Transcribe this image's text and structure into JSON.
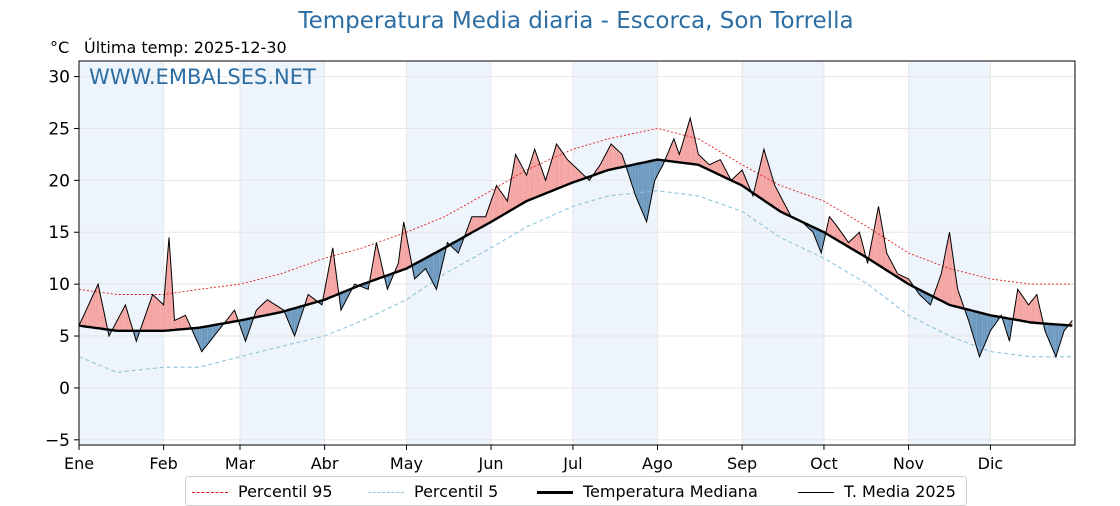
{
  "header": {
    "title": "Temperatura Media diaria - Escorca, Son Torrella",
    "unit": "°C",
    "last_temp": "Última temp: 2025-12-30",
    "watermark": "WWW.EMBALSES.NET"
  },
  "legend": {
    "p95": "Percentil 95",
    "p5": "Percentil 5",
    "median": "Temperatura Mediana",
    "year": "T. Media 2025"
  },
  "colors": {
    "title": "#2c6ea3",
    "p95": "#e31a1c",
    "p5": "#8fc4dc",
    "median": "#000000",
    "year": "#000000",
    "above_fill": "#f4a5a3",
    "below_fill": "#6f9ac0",
    "month_band": "#eef4fb"
  },
  "chart_data": {
    "type": "line",
    "ylim": [
      -5.5,
      31.5
    ],
    "yticks": [
      -5,
      0,
      5,
      10,
      15,
      20,
      25,
      30
    ],
    "grid": true,
    "legend_position": "bottom-center",
    "months": [
      "Ene",
      "Feb",
      "Mar",
      "Abr",
      "May",
      "Jun",
      "Jul",
      "Ago",
      "Sep",
      "Oct",
      "Nov",
      "Dic"
    ],
    "month_start_days": [
      1,
      32,
      60,
      91,
      121,
      152,
      182,
      213,
      244,
      274,
      305,
      335
    ],
    "x_day_range": [
      1,
      365
    ],
    "series_keypoints_day_value": {
      "median": [
        [
          1,
          6.0
        ],
        [
          15,
          5.5
        ],
        [
          32,
          5.5
        ],
        [
          45,
          5.8
        ],
        [
          60,
          6.5
        ],
        [
          75,
          7.3
        ],
        [
          91,
          8.5
        ],
        [
          105,
          10.0
        ],
        [
          121,
          11.5
        ],
        [
          135,
          13.5
        ],
        [
          152,
          16.0
        ],
        [
          165,
          18.0
        ],
        [
          182,
          19.8
        ],
        [
          195,
          21.0
        ],
        [
          213,
          22.0
        ],
        [
          228,
          21.5
        ],
        [
          244,
          19.5
        ],
        [
          258,
          17.0
        ],
        [
          274,
          15.0
        ],
        [
          290,
          12.5
        ],
        [
          305,
          10.0
        ],
        [
          320,
          8.0
        ],
        [
          335,
          7.0
        ],
        [
          350,
          6.3
        ],
        [
          365,
          6.0
        ]
      ],
      "p95": [
        [
          1,
          9.5
        ],
        [
          15,
          9.0
        ],
        [
          32,
          9.0
        ],
        [
          45,
          9.5
        ],
        [
          60,
          10.0
        ],
        [
          75,
          11.0
        ],
        [
          91,
          12.5
        ],
        [
          105,
          13.5
        ],
        [
          121,
          15.0
        ],
        [
          135,
          16.5
        ],
        [
          152,
          19.0
        ],
        [
          165,
          21.0
        ],
        [
          182,
          23.0
        ],
        [
          195,
          24.0
        ],
        [
          213,
          25.0
        ],
        [
          228,
          24.0
        ],
        [
          244,
          21.5
        ],
        [
          258,
          19.5
        ],
        [
          274,
          18.0
        ],
        [
          290,
          15.5
        ],
        [
          305,
          13.0
        ],
        [
          320,
          11.5
        ],
        [
          335,
          10.5
        ],
        [
          350,
          10.0
        ],
        [
          365,
          10.0
        ]
      ],
      "p5": [
        [
          1,
          3.0
        ],
        [
          15,
          1.5
        ],
        [
          32,
          2.0
        ],
        [
          45,
          2.0
        ],
        [
          60,
          3.0
        ],
        [
          75,
          4.0
        ],
        [
          91,
          5.0
        ],
        [
          105,
          6.5
        ],
        [
          121,
          8.5
        ],
        [
          135,
          11.0
        ],
        [
          152,
          13.5
        ],
        [
          165,
          15.5
        ],
        [
          182,
          17.5
        ],
        [
          195,
          18.5
        ],
        [
          213,
          19.0
        ],
        [
          228,
          18.5
        ],
        [
          244,
          17.0
        ],
        [
          258,
          14.5
        ],
        [
          274,
          12.5
        ],
        [
          290,
          10.0
        ],
        [
          305,
          7.0
        ],
        [
          320,
          5.0
        ],
        [
          335,
          3.5
        ],
        [
          350,
          3.0
        ],
        [
          365,
          3.0
        ]
      ],
      "year_2025": [
        [
          1,
          6.0
        ],
        [
          8,
          10.0
        ],
        [
          12,
          5.0
        ],
        [
          18,
          8.0
        ],
        [
          22,
          4.5
        ],
        [
          28,
          9.0
        ],
        [
          32,
          8.0
        ],
        [
          34,
          14.5
        ],
        [
          36,
          6.5
        ],
        [
          40,
          7.0
        ],
        [
          46,
          3.5
        ],
        [
          52,
          5.5
        ],
        [
          58,
          7.5
        ],
        [
          62,
          4.5
        ],
        [
          66,
          7.5
        ],
        [
          70,
          8.5
        ],
        [
          76,
          7.5
        ],
        [
          80,
          5.0
        ],
        [
          85,
          9.0
        ],
        [
          90,
          8.0
        ],
        [
          94,
          13.5
        ],
        [
          97,
          7.5
        ],
        [
          102,
          10.0
        ],
        [
          107,
          9.5
        ],
        [
          110,
          14.0
        ],
        [
          114,
          9.5
        ],
        [
          118,
          12.0
        ],
        [
          120,
          16.0
        ],
        [
          124,
          10.5
        ],
        [
          128,
          11.5
        ],
        [
          132,
          9.5
        ],
        [
          136,
          14.0
        ],
        [
          140,
          13.0
        ],
        [
          145,
          16.5
        ],
        [
          150,
          16.5
        ],
        [
          154,
          19.5
        ],
        [
          158,
          18.0
        ],
        [
          161,
          22.5
        ],
        [
          165,
          20.5
        ],
        [
          168,
          23.0
        ],
        [
          172,
          20.0
        ],
        [
          176,
          23.5
        ],
        [
          180,
          22.0
        ],
        [
          184,
          21.0
        ],
        [
          188,
          20.0
        ],
        [
          192,
          21.5
        ],
        [
          196,
          23.5
        ],
        [
          200,
          22.5
        ],
        [
          205,
          18.5
        ],
        [
          209,
          16.0
        ],
        [
          212,
          20.0
        ],
        [
          215,
          21.5
        ],
        [
          219,
          24.0
        ],
        [
          221,
          22.5
        ],
        [
          225,
          26.0
        ],
        [
          228,
          22.5
        ],
        [
          232,
          21.5
        ],
        [
          236,
          22.0
        ],
        [
          240,
          20.0
        ],
        [
          244,
          21.0
        ],
        [
          248,
          18.5
        ],
        [
          252,
          23.0
        ],
        [
          256,
          19.5
        ],
        [
          259,
          18.0
        ],
        [
          262,
          16.5
        ],
        [
          266,
          16.0
        ],
        [
          270,
          15.0
        ],
        [
          273,
          13.0
        ],
        [
          276,
          16.5
        ],
        [
          279,
          15.5
        ],
        [
          283,
          14.0
        ],
        [
          287,
          15.0
        ],
        [
          290,
          12.0
        ],
        [
          294,
          17.5
        ],
        [
          297,
          13.0
        ],
        [
          301,
          11.0
        ],
        [
          305,
          10.5
        ],
        [
          309,
          9.0
        ],
        [
          313,
          8.0
        ],
        [
          317,
          11.0
        ],
        [
          320,
          15.0
        ],
        [
          323,
          9.5
        ],
        [
          327,
          6.5
        ],
        [
          331,
          3.0
        ],
        [
          335,
          5.5
        ],
        [
          339,
          7.0
        ],
        [
          342,
          4.5
        ],
        [
          345,
          9.5
        ],
        [
          349,
          8.0
        ],
        [
          352,
          9.0
        ],
        [
          355,
          5.5
        ],
        [
          359,
          3.0
        ],
        [
          362,
          5.5
        ],
        [
          365,
          6.5
        ]
      ]
    }
  }
}
